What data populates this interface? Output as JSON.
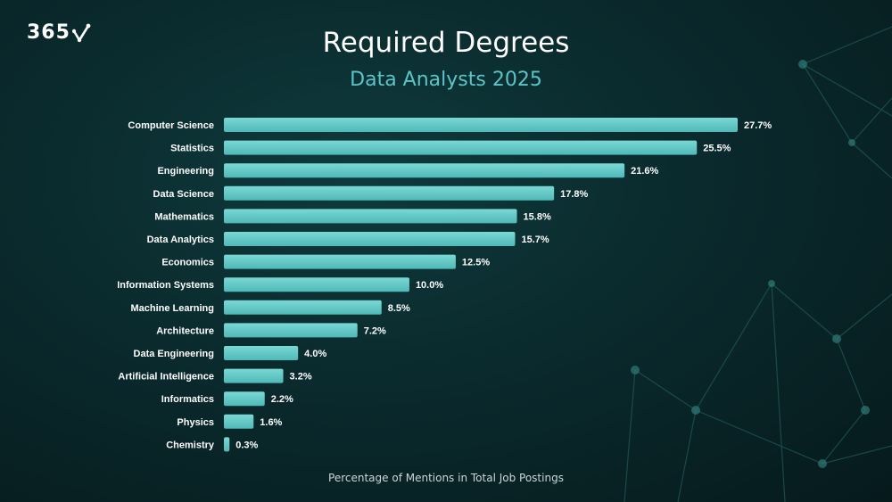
{
  "brand": {
    "logo_text": "365"
  },
  "colors": {
    "bar": "#5ec9c7",
    "background": "#0a2a2d",
    "subtitle": "#5cc4c6"
  },
  "chart_data": {
    "type": "bar",
    "orientation": "horizontal",
    "title": "Required Degrees",
    "subtitle": "Data Analysts 2025",
    "xlabel": "Percentage of Mentions in Total Job Postings",
    "ylabel": "",
    "grid": false,
    "xlim": [
      0,
      27.7
    ],
    "categories": [
      "Computer Science",
      "Statistics",
      "Engineering",
      "Data Science",
      "Mathematics",
      "Data Analytics",
      "Economics",
      "Information Systems",
      "Machine Learning",
      "Architecture",
      "Data Engineering",
      "Artificial Intelligence",
      "Informatics",
      "Physics",
      "Chemistry"
    ],
    "values": [
      27.7,
      25.5,
      21.6,
      17.8,
      15.8,
      15.7,
      12.5,
      10.0,
      8.5,
      7.2,
      4.0,
      3.2,
      2.2,
      1.6,
      0.3
    ],
    "value_labels": [
      "27.7%",
      "25.5%",
      "21.6%",
      "17.8%",
      "15.8%",
      "15.7%",
      "12.5%",
      "10.0%",
      "8.5%",
      "7.2%",
      "4.0%",
      "3.2%",
      "2.2%",
      "1.6%",
      "0.3%"
    ]
  }
}
